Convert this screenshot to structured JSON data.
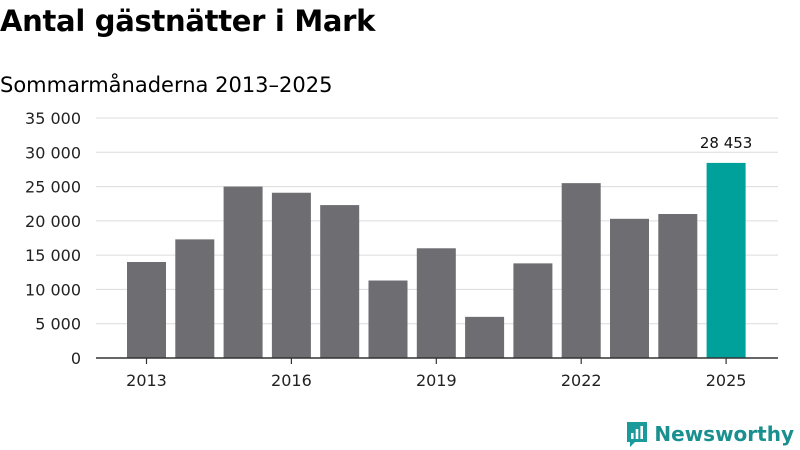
{
  "header": {
    "title": "Antal gästnätter i Mark",
    "subtitle": "Sommarmånaderna 2013–2025"
  },
  "brand": {
    "name": "Newsworthy",
    "color": "#1a9a9a",
    "icon": "newsworthy-logo-icon"
  },
  "colors": {
    "bar": "#6e6d72",
    "highlight": "#00a19a",
    "grid": "#dcdcdc",
    "axis": "#333333"
  },
  "chart_data": {
    "type": "bar",
    "title": "Antal gästnätter i Mark",
    "subtitle": "Sommarmånaderna 2013–2025",
    "xlabel": "",
    "ylabel": "",
    "categories": [
      "2013",
      "2014",
      "2015",
      "2016",
      "2017",
      "2018",
      "2019",
      "2020",
      "2021",
      "2022",
      "2023",
      "2024",
      "2025"
    ],
    "values": [
      14000,
      17300,
      25000,
      24100,
      22300,
      11300,
      16000,
      6000,
      13800,
      25500,
      20300,
      21000,
      28453
    ],
    "highlight_index": 12,
    "data_label": "28 453",
    "ylim": [
      0,
      35000
    ],
    "yticks": [
      0,
      5000,
      10000,
      15000,
      20000,
      25000,
      30000,
      35000
    ],
    "ytick_labels": [
      "0",
      "5 000",
      "10 000",
      "15 000",
      "20 000",
      "25 000",
      "30 000",
      "35 000"
    ],
    "xtick_labels": [
      "2013",
      "2016",
      "2019",
      "2022",
      "2025"
    ],
    "xtick_categories": [
      "2013",
      "2016",
      "2019",
      "2022",
      "2025"
    ],
    "grid": true,
    "legend": "none"
  }
}
